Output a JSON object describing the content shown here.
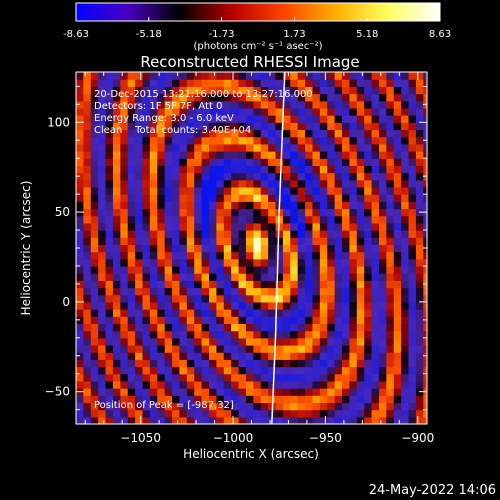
{
  "colorbar": {
    "ticks": [
      "-8.63",
      "-5.18",
      "-1.73",
      "1.73",
      "5.18",
      "8.63"
    ],
    "tick_values": [
      -8.63,
      -5.18,
      -1.73,
      1.73,
      5.18,
      8.63
    ],
    "range": [
      -8.63,
      8.63
    ],
    "unit_label": "(photons cm⁻² s⁻¹ asec⁻²)",
    "colors": [
      "#0000ff",
      "#4a00c0",
      "#000000",
      "#b80000",
      "#ff4400",
      "#ffb000",
      "#ffff60",
      "#ffffff"
    ]
  },
  "title": "Reconstructed RHESSI Image",
  "info": {
    "time": "20-Dec-2015 13:21:16.000 to 13:27:16.000",
    "detectors": "Detectors: 1F 5F 7F, Att 0",
    "energy": "Energy Range: 3.0 - 6.0 keV",
    "method": "Clean    Total counts: 3.40E+04"
  },
  "peak_label": "Position of Peak = [-987,32]",
  "footer_date": "24-May-2022 14:06",
  "chart_data": {
    "type": "heatmap",
    "title": "Reconstructed RHESSI Image",
    "xlabel": "Heliocentric X (arcsec)",
    "ylabel": "Heliocentric Y (arcsec)",
    "xlim": [
      -1085,
      -895
    ],
    "ylim": [
      -68,
      128
    ],
    "x_ticks": [
      -1050,
      -1000,
      -950,
      -900
    ],
    "x_tick_labels": [
      "−1050",
      "−1000",
      "−950",
      "−900"
    ],
    "y_ticks": [
      -50,
      0,
      50,
      100
    ],
    "y_tick_labels": [
      "−50",
      "0",
      "50",
      "100"
    ],
    "value_range": [
      -8.63,
      8.63
    ],
    "peak": {
      "x": -987,
      "y": 32,
      "value": 8.63
    },
    "limb_x_at_y": [
      [
        -972,
        128
      ],
      [
        -975,
        50
      ],
      [
        -977,
        -20
      ],
      [
        -979,
        -68
      ]
    ]
  }
}
